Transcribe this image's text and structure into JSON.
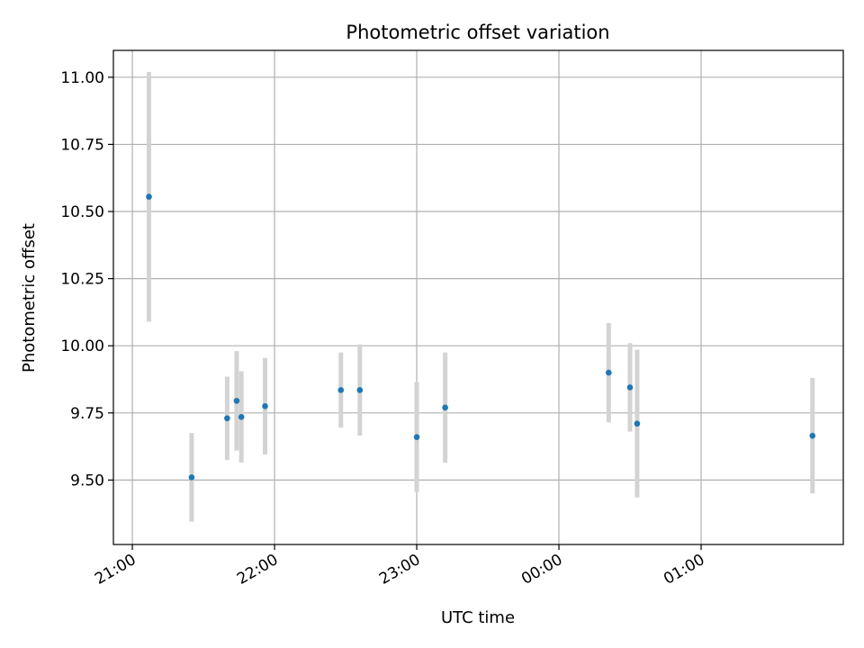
{
  "chart_data": {
    "type": "scatter",
    "title": "Photometric offset variation",
    "xlabel": "UTC time",
    "ylabel": "Photometric offset",
    "x_ticks": [
      "21:00",
      "22:00",
      "23:00",
      "00:00",
      "01:00"
    ],
    "y_ticks": [
      "9.50",
      "9.75",
      "10.00",
      "10.25",
      "10.50",
      "10.75",
      "11.00"
    ],
    "xlim": [
      "20:52",
      "02:00"
    ],
    "ylim": [
      9.26,
      11.1
    ],
    "grid": true,
    "series": [
      {
        "marker_color": "#1f77b4",
        "errorbar_color": "#d3d3d3",
        "points": [
          {
            "x": "21:07",
            "y": 10.555,
            "err": 0.465
          },
          {
            "x": "21:25",
            "y": 9.51,
            "err": 0.165
          },
          {
            "x": "21:40",
            "y": 9.73,
            "err": 0.155
          },
          {
            "x": "21:44",
            "y": 9.795,
            "err": 0.185
          },
          {
            "x": "21:46",
            "y": 9.735,
            "err": 0.17
          },
          {
            "x": "21:56",
            "y": 9.775,
            "err": 0.18
          },
          {
            "x": "22:28",
            "y": 9.835,
            "err": 0.14
          },
          {
            "x": "22:36",
            "y": 9.835,
            "err": 0.17
          },
          {
            "x": "23:00",
            "y": 9.66,
            "err": 0.205
          },
          {
            "x": "23:12",
            "y": 9.77,
            "err": 0.205
          },
          {
            "x": "00:21",
            "y": 9.9,
            "err": 0.185
          },
          {
            "x": "00:30",
            "y": 9.845,
            "err": 0.165
          },
          {
            "x": "00:33",
            "y": 9.71,
            "err": 0.275
          },
          {
            "x": "01:47",
            "y": 9.665,
            "err": 0.215
          }
        ]
      }
    ]
  }
}
